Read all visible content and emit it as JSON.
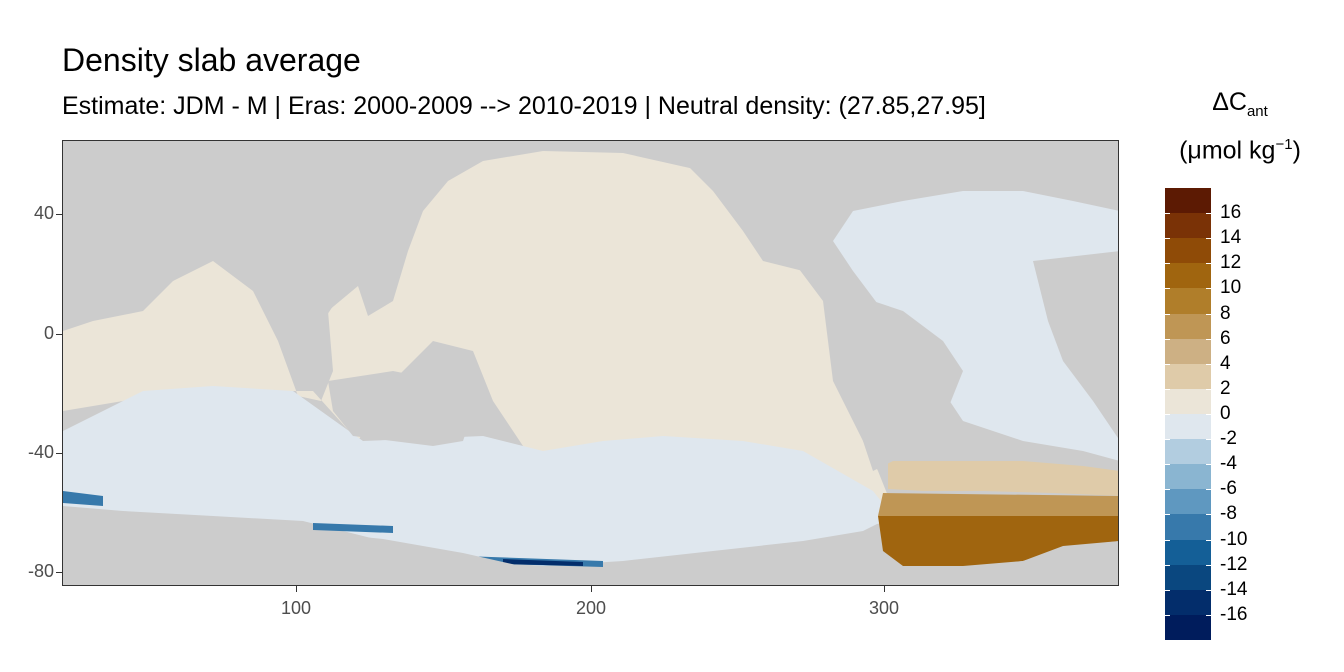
{
  "title": "Density slab average",
  "subtitle": "Estimate: JDM - M | Eras: 2000-2009 --> 2010-2019 | Neutral density: (27.85,27.95]",
  "legend": {
    "title_main": "ΔC",
    "title_sub": "ant",
    "units_pre": "(μmol kg",
    "units_sup": "−1",
    "units_post": ")",
    "labels": [
      "16",
      "14",
      "12",
      "10",
      "8",
      "6",
      "4",
      "2",
      "0",
      "-2",
      "-4",
      "-6",
      "-8",
      "-10",
      "-12",
      "-14",
      "-16"
    ],
    "colors": [
      "#5c1a03",
      "#7a3206",
      "#8f4b07",
      "#a0650f",
      "#b07e2a",
      "#bf9655",
      "#cdb084",
      "#dfcba9",
      "#ebe5d8",
      "#dfe7ee",
      "#b2cde0",
      "#8ab5d1",
      "#5f98c0",
      "#3779ab",
      "#145f97",
      "#0a477f",
      "#032d6b",
      "#001c5c"
    ]
  },
  "axes": {
    "y_ticks": [
      "40",
      "0",
      "-40",
      "-80"
    ],
    "x_ticks": [
      "100",
      "200",
      "300"
    ]
  },
  "colors": {
    "land": "#cccccc",
    "positive_small": "#ebe5d8",
    "negative_small": "#dfe7ee",
    "panel_border": "#333333"
  }
}
